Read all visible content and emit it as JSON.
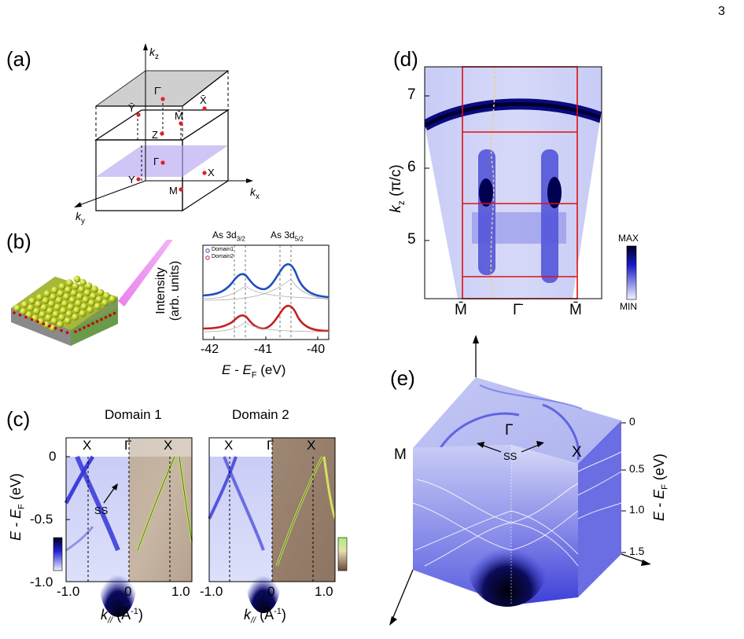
{
  "page_number": "3",
  "panels": {
    "a": {
      "label": "(a)",
      "axes": {
        "kz": "k",
        "kz_sub": "z",
        "kx": "k",
        "kx_sub": "x",
        "ky": "k",
        "ky_sub": "y"
      },
      "points_top": {
        "gamma_bar": "Γ̄",
        "y_bar": "Ȳ",
        "x_bar": "X̄",
        "m_bar": "M̄",
        "z": "Z"
      },
      "points_bottom": {
        "gamma": "Γ",
        "y": "Y",
        "x": "X",
        "m": "M"
      }
    },
    "b": {
      "label": "(b)",
      "peak1": "As 3d",
      "peak1_sub": "3/2",
      "peak2": "As 3d",
      "peak2_sub": "5/2",
      "legend": [
        "Domain1",
        "Domain2"
      ],
      "ylabel_line1": "Intensity",
      "ylabel_line2": "(arb. units)",
      "xlabel": "E - E",
      "xlabel_sub": "F",
      "xlabel_unit": "(eV)",
      "xticks": [
        "-42",
        "-41",
        "-40"
      ]
    },
    "c": {
      "label": "(c)",
      "titles": [
        "Domain 1",
        "Domain 2"
      ],
      "ylabel": "E - E",
      "ylabel_sub": "F",
      "ylabel_unit": "(eV)",
      "yticks": [
        "0",
        "-0.5",
        "-1.0"
      ],
      "xticks": [
        "-1.0",
        "0",
        "1.0"
      ],
      "xlabel": "k",
      "xlabel_sub": "//",
      "xlabel_unit": "(Å",
      "xlabel_sup": "-1",
      "xlabel_close": ")",
      "sym": {
        "x": "X",
        "gamma": "Γ"
      },
      "ss": "SS"
    },
    "d": {
      "label": "(d)",
      "ylabel": "k",
      "ylabel_sub": "z",
      "ylabel_unit": "(π/c)",
      "yticks": [
        "7",
        "6",
        "5"
      ],
      "xticks": [
        "M̄",
        "Γ̄",
        "M̄"
      ],
      "colorbar": {
        "max": "MAX",
        "min": "MIN"
      }
    },
    "e": {
      "label": "(e)",
      "sym": {
        "m": "M",
        "gamma": "Γ",
        "x": "X"
      },
      "ss": "SS",
      "zlabel": "E - E",
      "zlabel_sub": "F",
      "zlabel_unit": "(eV)",
      "zticks": [
        "0",
        "0.5",
        "1.0",
        "1.5"
      ]
    }
  },
  "colors": {
    "arpes_blue": "#1a1ad6",
    "domain1": "#1f4fc0",
    "domain2": "#c42020",
    "grid_red": "#e01010"
  }
}
